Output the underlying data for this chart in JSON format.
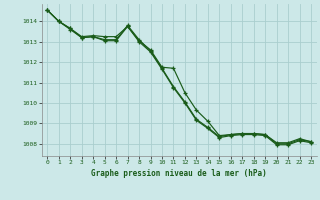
{
  "title": "Graphe pression niveau de la mer (hPa)",
  "bg_color": "#cce8e8",
  "grid_color": "#aacece",
  "line_color": "#1a5c1a",
  "xlim": [
    -0.5,
    23.5
  ],
  "ylim": [
    1007.4,
    1014.85
  ],
  "yticks": [
    1008,
    1009,
    1010,
    1011,
    1012,
    1013,
    1014
  ],
  "xticks": [
    0,
    1,
    2,
    3,
    4,
    5,
    6,
    7,
    8,
    9,
    10,
    11,
    12,
    13,
    14,
    15,
    16,
    17,
    18,
    19,
    20,
    21,
    22,
    23
  ],
  "series1": [
    1014.55,
    1014.0,
    1013.65,
    1013.25,
    1013.3,
    1013.25,
    1013.25,
    1013.75,
    1013.05,
    1012.6,
    1011.75,
    1011.7,
    1010.5,
    1009.65,
    1009.1,
    1008.4,
    1008.45,
    1008.5,
    1008.5,
    1008.45,
    1008.05,
    1008.05,
    1008.25,
    1008.1
  ],
  "series2": [
    1014.55,
    1014.0,
    1013.65,
    1013.2,
    1013.25,
    1013.1,
    1013.1,
    1013.8,
    1013.1,
    1012.55,
    1011.7,
    1010.8,
    1010.05,
    1009.2,
    1008.8,
    1008.35,
    1008.45,
    1008.5,
    1008.5,
    1008.45,
    1008.0,
    1008.0,
    1008.2,
    1008.1
  ],
  "series3": [
    1014.55,
    1014.0,
    1013.6,
    1013.2,
    1013.25,
    1013.05,
    1013.05,
    1013.75,
    1013.0,
    1012.5,
    1011.65,
    1010.75,
    1010.0,
    1009.15,
    1008.75,
    1008.3,
    1008.4,
    1008.45,
    1008.45,
    1008.4,
    1007.95,
    1007.95,
    1008.15,
    1008.05
  ]
}
